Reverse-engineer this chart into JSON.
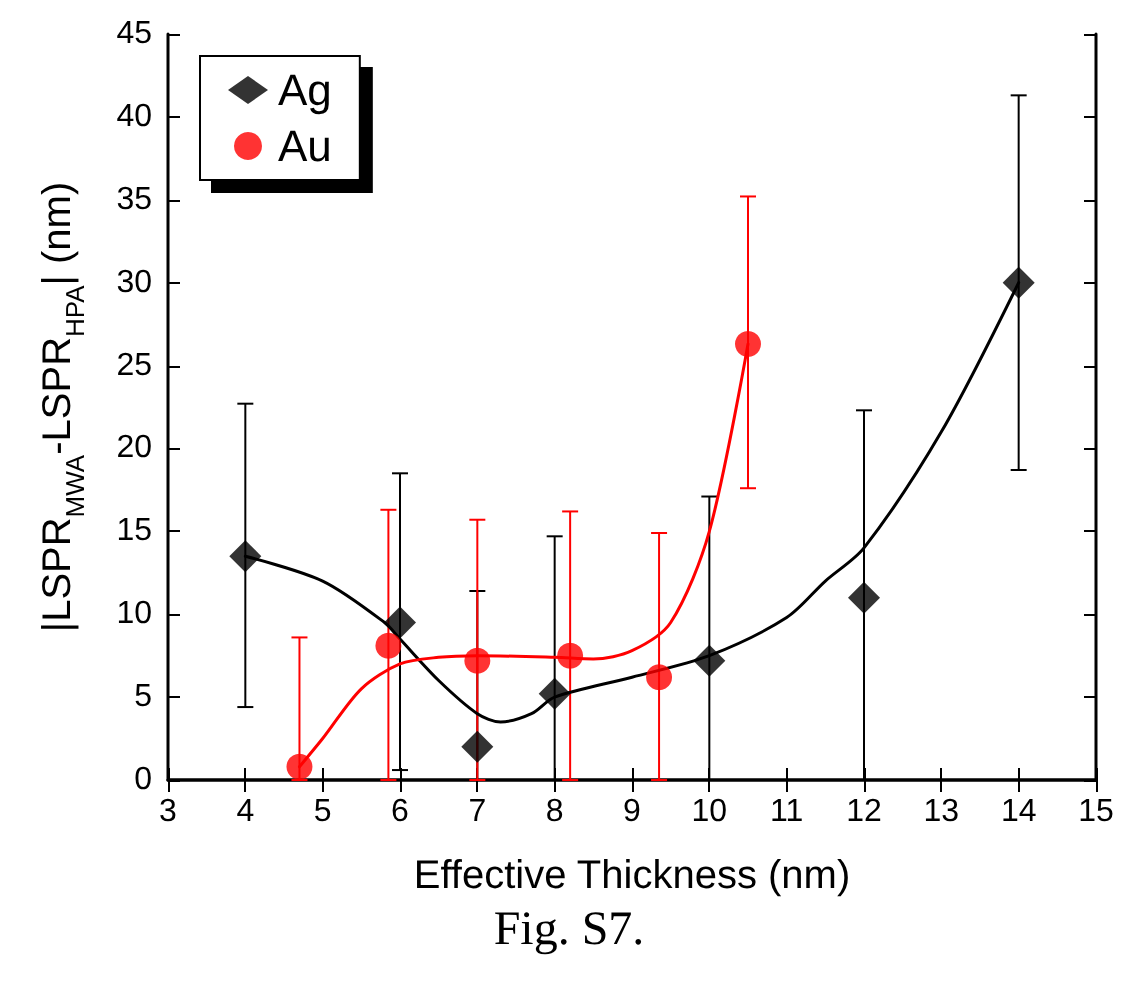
{
  "chart_data": {
    "type": "scatter",
    "xlabel": "Effective Thickness (nm)",
    "ylabel": "|LSPR$_{MWA}$-LSPR$_{HPA}$| (nm)",
    "annotations": [
      "Fig. S7."
    ],
    "xlim": [
      3,
      15
    ],
    "xticks": [
      3,
      4,
      5,
      6,
      7,
      8,
      9,
      10,
      11,
      12,
      13,
      14,
      15
    ],
    "ylim": [
      0,
      45
    ],
    "yticks": [
      0,
      5,
      10,
      15,
      20,
      25,
      30,
      35,
      40,
      45
    ],
    "grid": false,
    "legend": "top left",
    "series": [
      {
        "name": "Ag",
        "marker": "diamond",
        "color": "#000000",
        "x": [
          4,
          6,
          7,
          8,
          10,
          12,
          14
        ],
        "values": [
          13.5,
          9.5,
          2.0,
          5.2,
          7.2,
          11.0,
          30.0
        ],
        "errors": [
          [
            4.4,
            22.7
          ],
          [
            0.6,
            18.5
          ],
          [
            0,
            11.4
          ],
          [
            0,
            14.7
          ],
          [
            0,
            17.1
          ],
          [
            0,
            22.3
          ],
          [
            18.7,
            41.3
          ]
        ]
      },
      {
        "name": "Au",
        "marker": "circle",
        "color": "#ff0000",
        "x": [
          4.7,
          5.85,
          7.0,
          8.2,
          9.35,
          10.5
        ],
        "values": [
          0.8,
          8.1,
          7.2,
          7.5,
          6.2,
          26.3
        ],
        "errors": [
          [
            0,
            8.6
          ],
          [
            0,
            16.3
          ],
          [
            0,
            15.7
          ],
          [
            0,
            16.2
          ],
          [
            0,
            14.9
          ],
          [
            17.6,
            35.2
          ]
        ]
      },
      {
        "type": "line",
        "marker": "none",
        "color": "#000000",
        "x": [
          4,
          5,
          5.8,
          6,
          6.5,
          7,
          7.3,
          7.7,
          8,
          9,
          10,
          11,
          11.5,
          12,
          13,
          14
        ],
        "values": [
          13.5,
          12,
          9.5,
          8.5,
          6,
          4,
          3.5,
          4,
          5,
          6.2,
          7.5,
          9.8,
          12,
          14,
          21,
          30
        ]
      },
      {
        "type": "line",
        "marker": "none",
        "color": "#ff0000",
        "x": [
          4.7,
          5,
          5.5,
          6,
          6.5,
          7,
          8,
          8.5,
          9,
          9.5,
          10,
          10.5
        ],
        "values": [
          0.8,
          2.5,
          5.5,
          7,
          7.4,
          7.5,
          7.4,
          7.3,
          7.8,
          9.5,
          15,
          26.3
        ]
      }
    ]
  }
}
